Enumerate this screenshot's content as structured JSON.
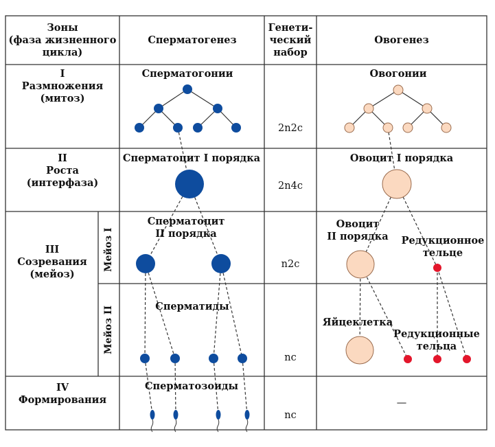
{
  "table": {
    "headers": {
      "zones": [
        "Зоны",
        "(фаза жизненного",
        "цикла)"
      ],
      "spermatogenesis": "Сперматогенез",
      "genetic": [
        "Генети-",
        "ческий",
        "набор"
      ],
      "oogenesis": "Овогенез"
    },
    "rows": [
      {
        "zone": [
          "I",
          "Размножения",
          "(митоз)"
        ],
        "sperm_label": "Сперматогонии",
        "genetic": "2n2c",
        "oo_label": "Овогонии"
      },
      {
        "zone": [
          "II",
          "Роста",
          "(интерфаза)"
        ],
        "sperm_label": "Сперматоцит I порядка",
        "genetic": "2n4c",
        "oo_label": "Овоцит I порядка"
      },
      {
        "zone": [
          "III",
          "Созревания",
          "(мейоз)"
        ],
        "meiosis1": "Мейоз I",
        "meiosis2": "Мейоз II",
        "sperm_label_m1": [
          "Сперматоцит",
          "II порядка"
        ],
        "genetic_m1": "n2c",
        "oo_label_m1": [
          "Овоцит",
          "II порядка"
        ],
        "polar_body_m1": [
          "Редукционное",
          "тельце"
        ],
        "sperm_label_m2": "Сперматиды",
        "genetic_m2": "nc",
        "egg_label": "Яйцеклетка",
        "polar_bodies_m2": [
          "Редукционные",
          "тельца"
        ]
      },
      {
        "zone": [
          "IV",
          "Формирования"
        ],
        "sperm_label": "Сперматозоиды",
        "genetic": "nc",
        "oo_value": "—"
      }
    ]
  },
  "colors": {
    "sperm_cell": "#0e4c9e",
    "oo_cell_fill": "#fbd9c0",
    "oo_cell_stroke": "#9a6b4d",
    "polar_body": "#e3162b",
    "grid": "#333333"
  }
}
